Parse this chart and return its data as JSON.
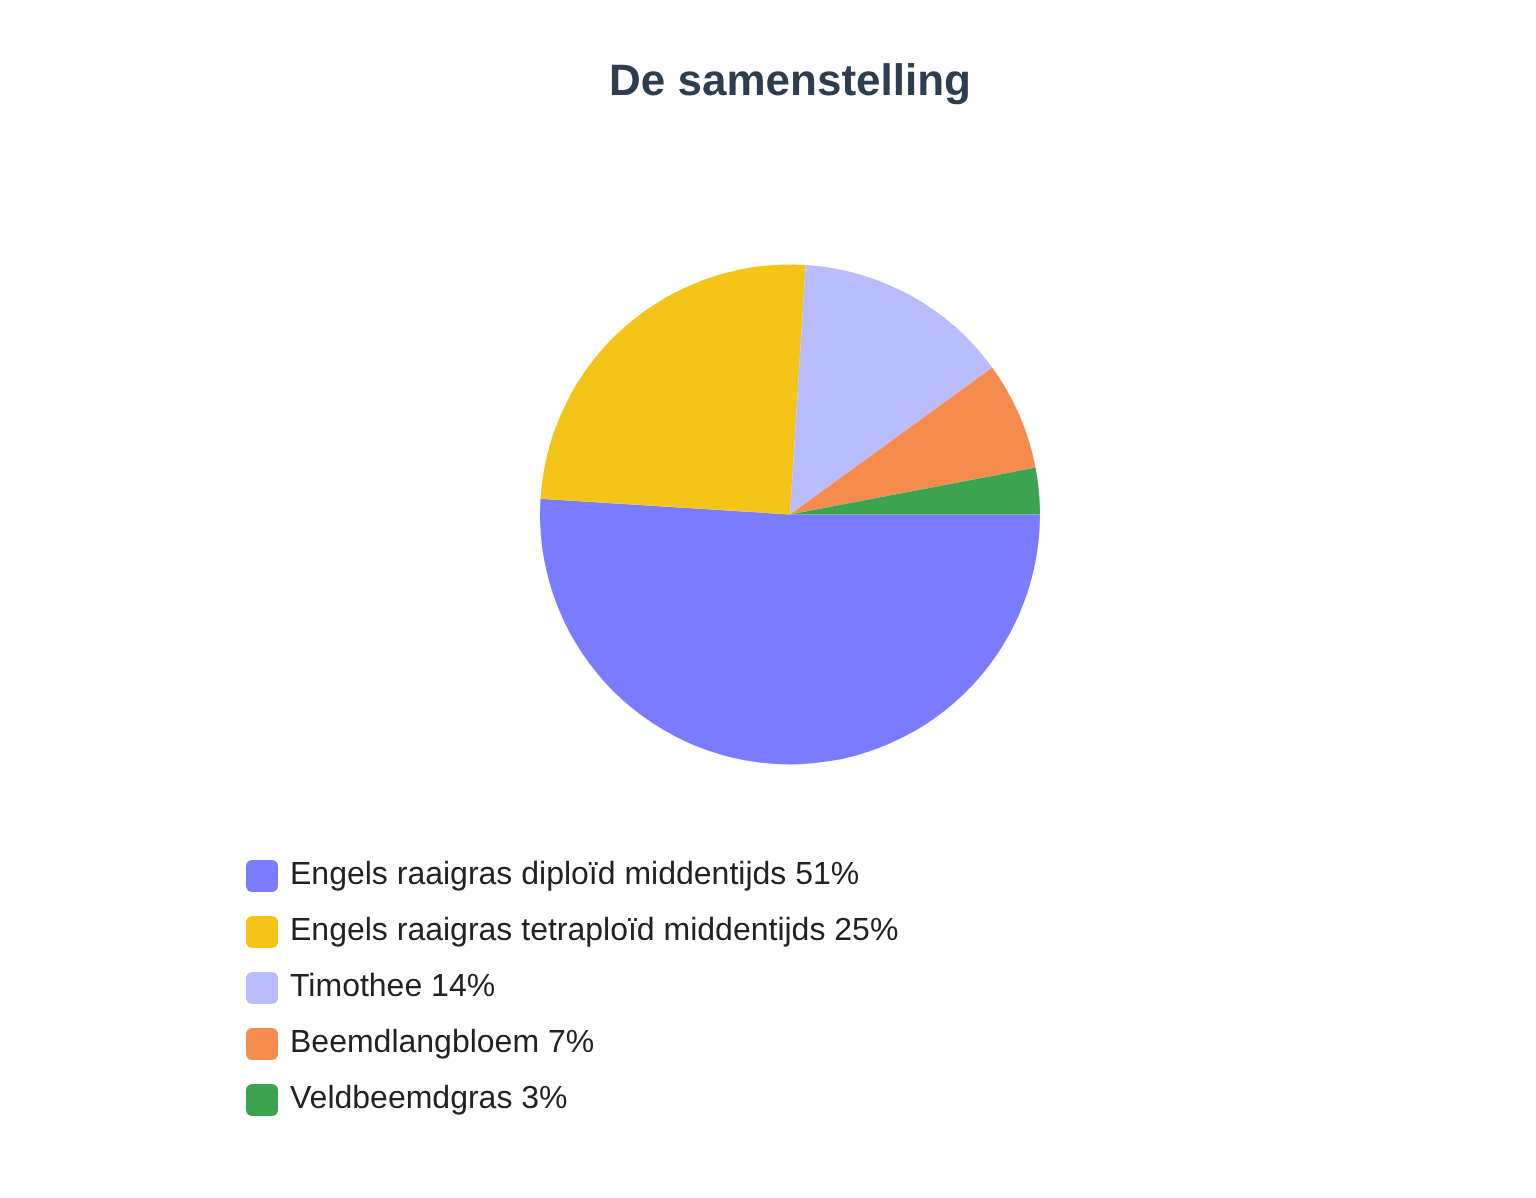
{
  "chart_data": {
    "type": "pie",
    "title": "De samenstelling",
    "categories": [
      "Engels raaigras diploïd middentijds",
      "Engels raaigras tetraploïd middentijds",
      "Timothee",
      "Beemdlangbloem",
      "Veldbeemdgras"
    ],
    "values": [
      51,
      25,
      14,
      7,
      3
    ],
    "value_labels": [
      "51%",
      "25%",
      "14%",
      "7%",
      "3%"
    ],
    "colors": [
      "#7a7cff",
      "#f4c418",
      "#babdfd",
      "#f58b4c",
      "#3ca451"
    ],
    "legend": "bottom"
  }
}
